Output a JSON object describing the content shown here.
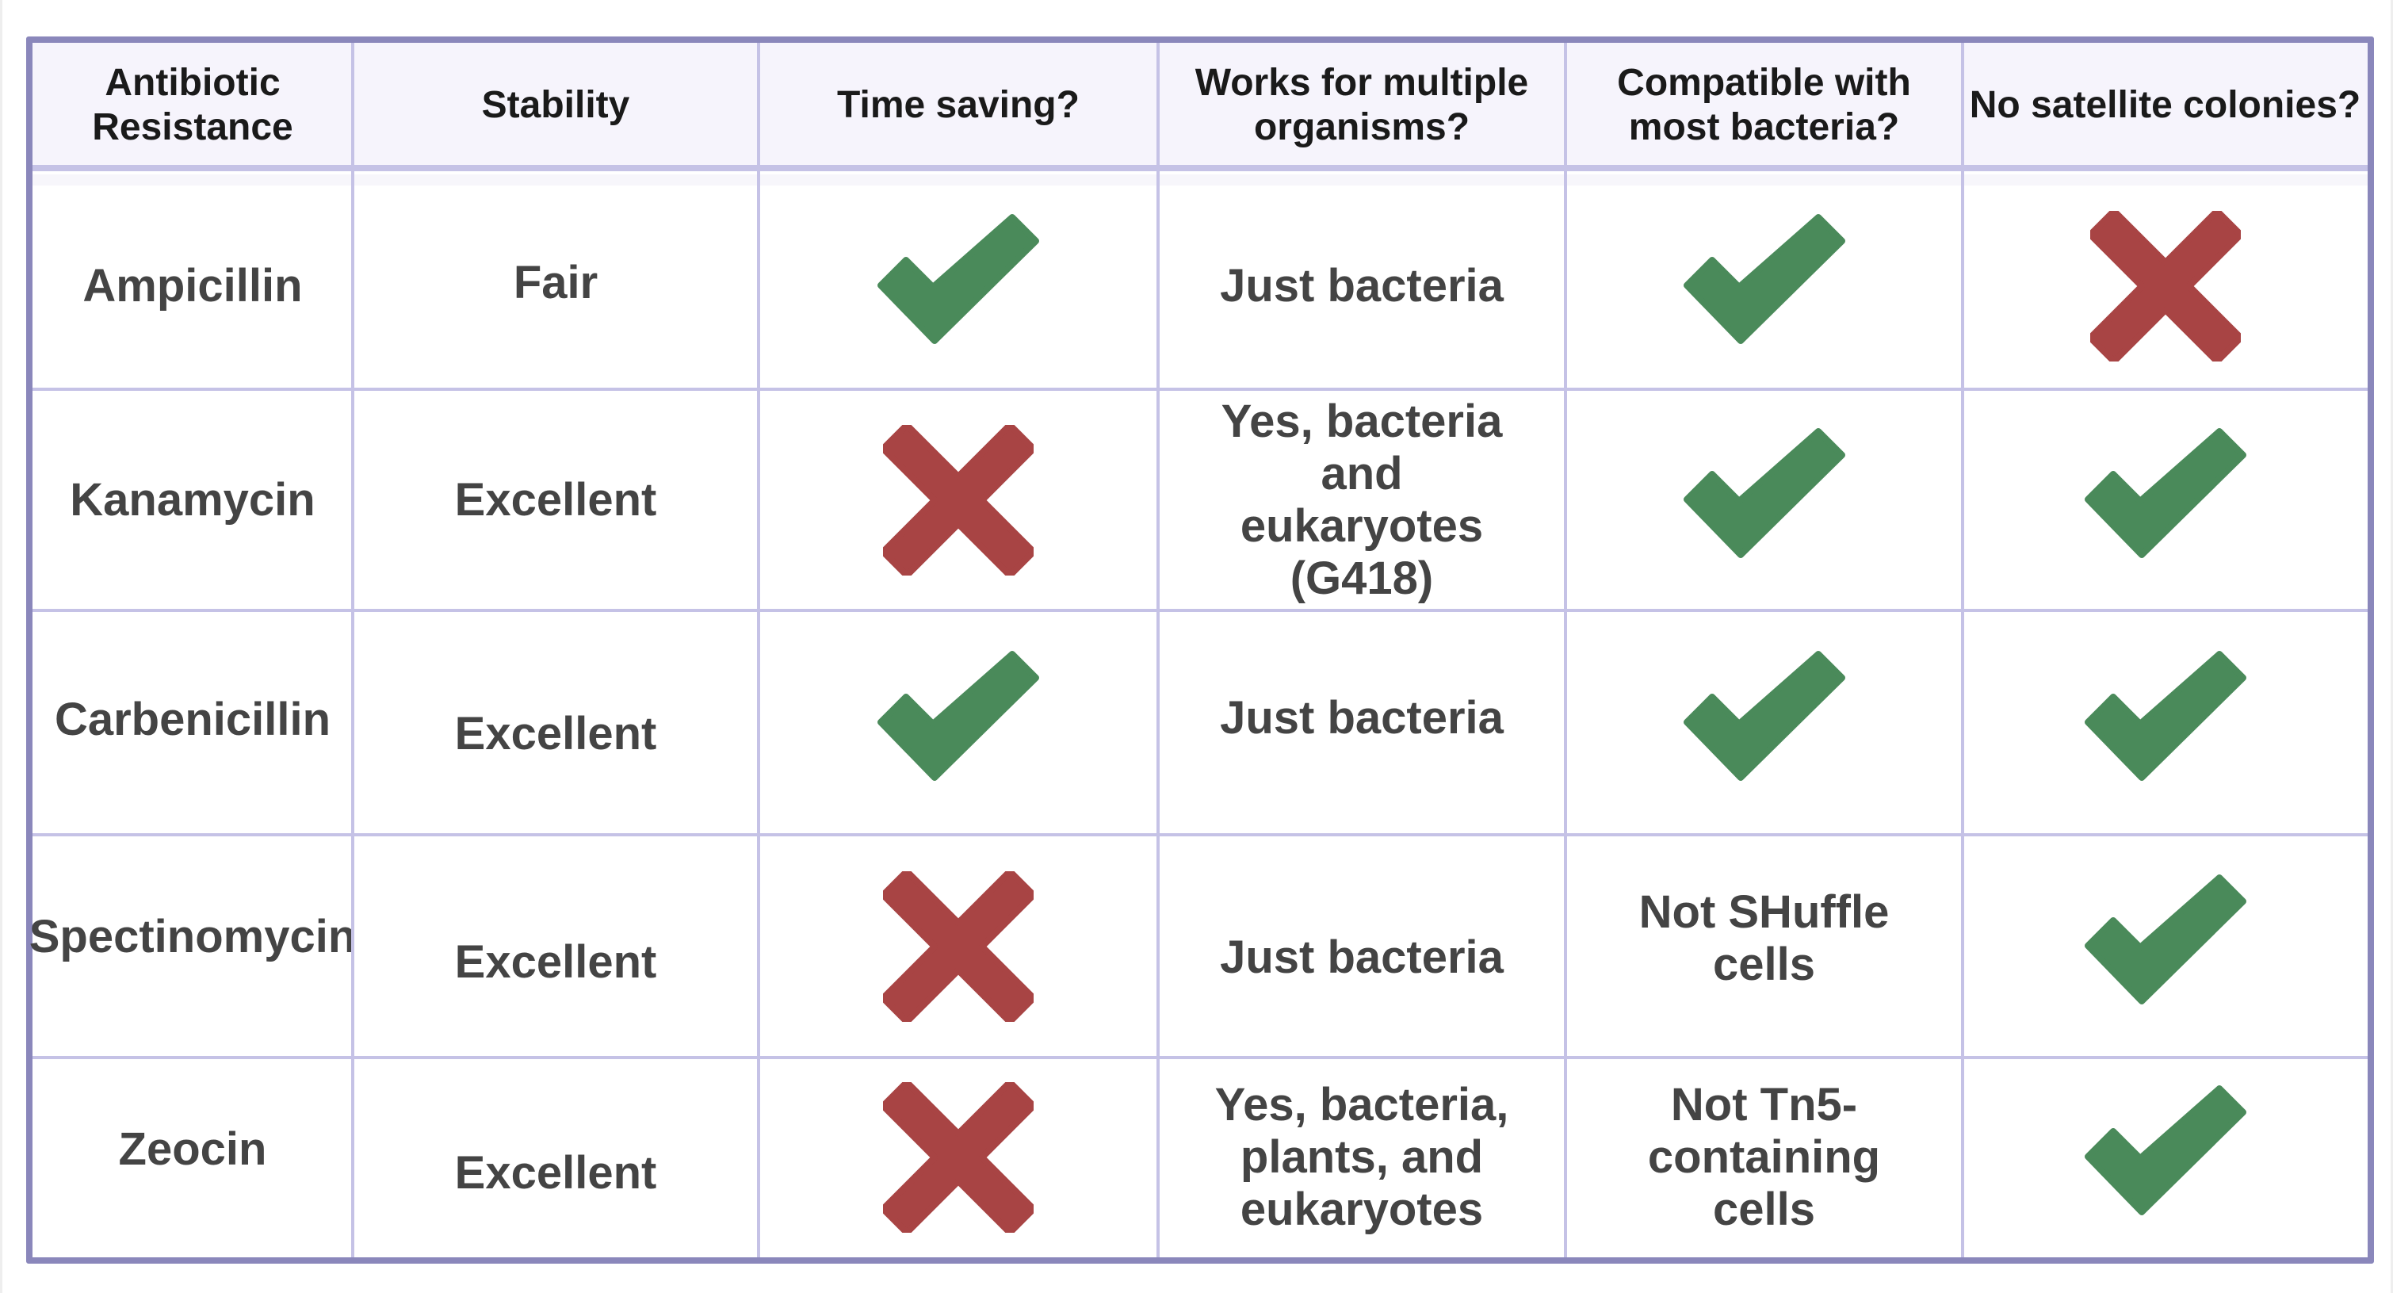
{
  "table": {
    "colors": {
      "check": "#4a8a5a",
      "cross": "#a84444",
      "border_outer": "#8a87bb",
      "border_inner": "#c5c2e6",
      "header_bg": "#f6f4fc",
      "header_text": "#1a1a1a",
      "body_text": "#444444"
    },
    "headers": [
      "Antibiotic\nResistance",
      "Stability",
      "Time saving?",
      "Works for multiple\norganisms?",
      "Compatible with\nmost bacteria?",
      "No satellite colonies?"
    ],
    "rows": [
      {
        "antibiotic": "Ampicillin",
        "stability": "Fair",
        "time_saving": "check-icon",
        "multiple_organisms": "Just bacteria",
        "compatible_bacteria": "check-icon",
        "no_satellite_colonies": "cross-icon"
      },
      {
        "antibiotic": "Kanamycin",
        "stability": "Excellent",
        "time_saving": "cross-icon",
        "multiple_organisms": "Yes, bacteria\nand\neukaryotes\n(G418)",
        "compatible_bacteria": "check-icon",
        "no_satellite_colonies": "check-icon"
      },
      {
        "antibiotic": "Carbenicillin",
        "stability": "Excellent",
        "time_saving": "check-icon",
        "multiple_organisms": "Just bacteria",
        "compatible_bacteria": "check-icon",
        "no_satellite_colonies": "check-icon"
      },
      {
        "antibiotic": "Spectinomycin",
        "stability": "Excellent",
        "time_saving": "cross-icon",
        "multiple_organisms": "Just bacteria",
        "compatible_bacteria": "Not SHuffle\ncells",
        "no_satellite_colonies": "check-icon"
      },
      {
        "antibiotic": "Zeocin",
        "stability": "Excellent",
        "time_saving": "cross-icon",
        "multiple_organisms": "Yes, bacteria,\nplants, and\neukaryotes",
        "compatible_bacteria": "Not Tn5-\ncontaining\ncells",
        "no_satellite_colonies": "check-icon"
      }
    ]
  }
}
